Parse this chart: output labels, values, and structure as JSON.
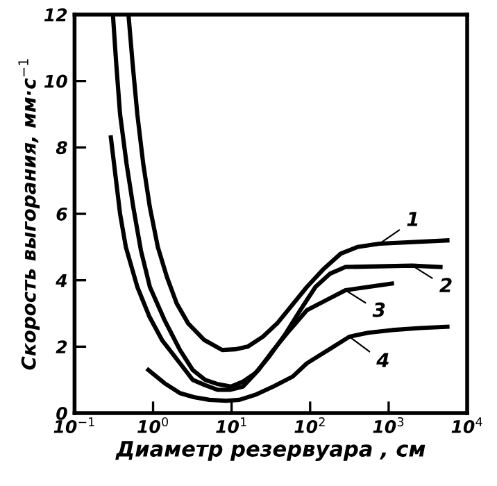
{
  "chart_data": {
    "type": "line",
    "xlabel": "Диаметр резервуара , см",
    "ylabel": "Скорость выгорания, мм·с$^{−1}$",
    "log": "x",
    "grid": false,
    "legend": "right",
    "marker": "none",
    "line_style": "solid",
    "xlim": [
      0.1,
      10000
    ],
    "xticks": [
      {
        "value": 0.1,
        "label": "10$^{−1}$"
      },
      {
        "value": 1,
        "label": "10$^{0}$"
      },
      {
        "value": 10,
        "label": "10$^{1}$"
      },
      {
        "value": 100,
        "label": "10$^{2}$"
      },
      {
        "value": 1000,
        "label": "10$^{3}$"
      },
      {
        "value": 10000,
        "label": "10$^{4}$"
      }
    ],
    "ylim": [
      0,
      12
    ],
    "yticks": [
      0,
      2,
      4,
      6,
      8,
      10,
      12
    ],
    "series": [
      {
        "name": "1",
        "color": "#000000",
        "x": [
          0.49,
          0.55,
          0.63,
          0.75,
          0.91,
          1.15,
          1.5,
          2.0,
          2.8,
          4.5,
          7.6,
          11,
          16,
          25,
          38,
          91,
          150,
          245,
          400,
          760,
          5600
        ],
        "values": [
          11.9,
          10.5,
          9.0,
          7.5,
          6.2,
          5.0,
          4.1,
          3.3,
          2.7,
          2.2,
          1.9,
          1.92,
          2.0,
          2.3,
          2.7,
          3.8,
          4.35,
          4.8,
          5.0,
          5.1,
          5.2
        ]
      },
      {
        "name": "2",
        "color": "#000000",
        "x": [
          0.31,
          0.34,
          0.38,
          0.46,
          0.56,
          0.7,
          0.91,
          1.4,
          2.2,
          3.2,
          4.6,
          6.5,
          9.8,
          14,
          20,
          30,
          49,
          75,
          117,
          180,
          282,
          2000,
          4570
        ],
        "values": [
          11.9,
          10.5,
          9.0,
          7.5,
          6.2,
          4.9,
          3.8,
          2.8,
          1.9,
          1.3,
          1.0,
          0.88,
          0.8,
          0.95,
          1.2,
          1.7,
          2.4,
          3.1,
          3.8,
          4.2,
          4.4,
          4.44,
          4.4
        ]
      },
      {
        "name": "3",
        "color": "#000000",
        "x": [
          0.29,
          0.38,
          0.45,
          0.63,
          0.9,
          1.3,
          2.2,
          3.2,
          4.5,
          6.7,
          9.5,
          14,
          22,
          34,
          55,
          91,
          160,
          282,
          550,
          1100
        ],
        "values": [
          8.3,
          6.0,
          5.0,
          3.8,
          2.9,
          2.2,
          1.5,
          1.0,
          0.85,
          0.7,
          0.7,
          0.8,
          1.3,
          1.9,
          2.5,
          3.1,
          3.4,
          3.7,
          3.8,
          3.9
        ]
      },
      {
        "name": "4",
        "color": "#000000",
        "x": [
          0.87,
          1.4,
          2.2,
          3.3,
          5.2,
          8.5,
          12.6,
          20,
          34,
          60,
          91,
          170,
          316,
          550,
          1100,
          2500,
          5600
        ],
        "values": [
          1.3,
          0.9,
          0.6,
          0.48,
          0.4,
          0.37,
          0.4,
          0.55,
          0.8,
          1.1,
          1.5,
          1.9,
          2.3,
          2.42,
          2.5,
          2.56,
          2.6
        ]
      }
    ]
  }
}
